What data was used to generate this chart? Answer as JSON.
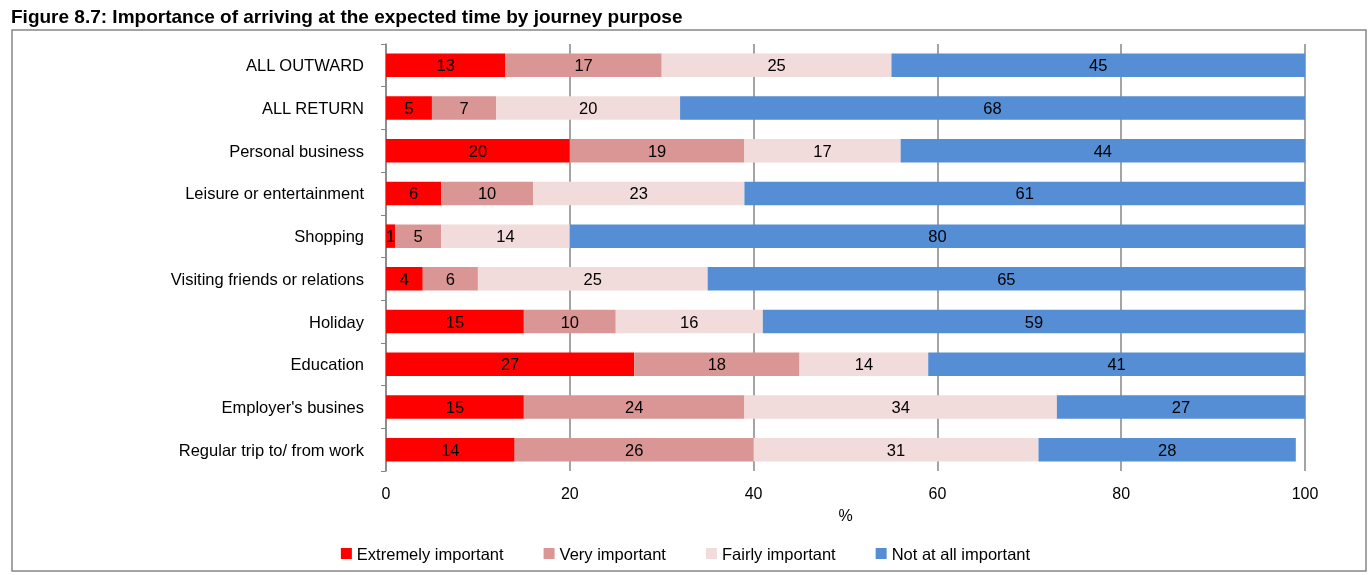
{
  "chart_data": {
    "type": "bar",
    "orientation": "horizontal",
    "stacked": true,
    "title": "Figure 8.7: Importance of arriving at the expected time by journey purpose",
    "xlabel": "%",
    "categories": [
      "ALL OUTWARD",
      "ALL RETURN",
      "Personal business",
      "Leisure or entertainment",
      "Shopping",
      "Visiting friends or relations",
      "Holiday",
      "Education",
      "Employer's busines",
      "Regular trip to/ from work"
    ],
    "series": [
      {
        "name": "Extremely important",
        "color": "#ff0000",
        "values": [
          13,
          5,
          20,
          6,
          1,
          4,
          15,
          27,
          15,
          14
        ]
      },
      {
        "name": "Very important",
        "color": "#d99694",
        "values": [
          17,
          7,
          19,
          10,
          5,
          6,
          10,
          18,
          24,
          26
        ]
      },
      {
        "name": "Fairly important",
        "color": "#f2dcdb",
        "values": [
          25,
          20,
          17,
          23,
          14,
          25,
          16,
          14,
          34,
          31
        ]
      },
      {
        "name": "Not at all important",
        "color": "#558ed5",
        "values": [
          45,
          68,
          44,
          61,
          80,
          65,
          59,
          41,
          27,
          28
        ]
      }
    ],
    "xlim": [
      0,
      100
    ],
    "xticks": [
      0,
      20,
      40,
      60,
      80,
      100
    ],
    "grid": "x",
    "legend": "bottom",
    "data_labels": true
  }
}
